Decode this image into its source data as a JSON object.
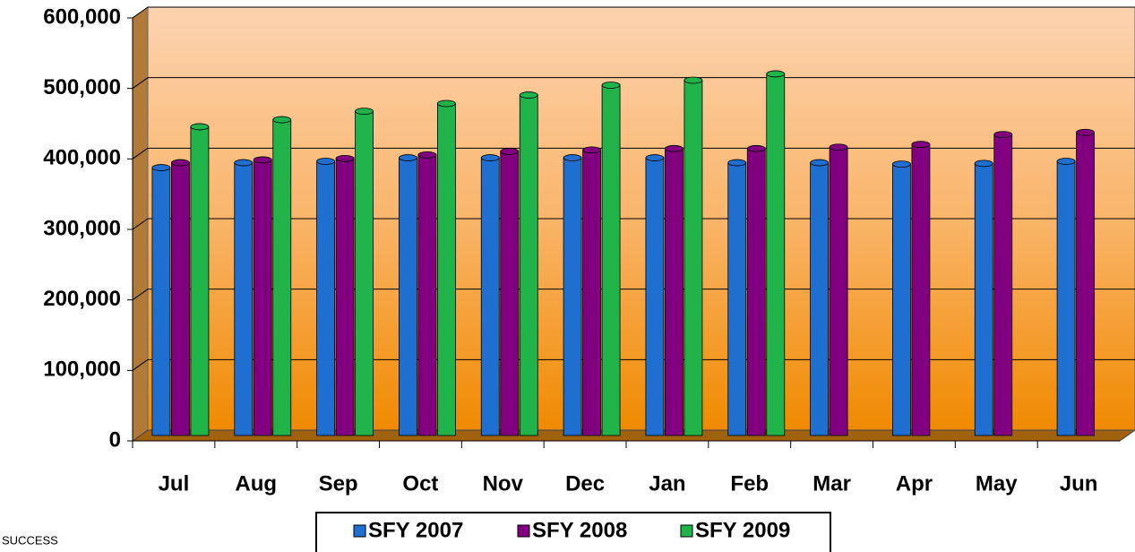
{
  "chart_data": {
    "type": "bar",
    "categories": [
      "Jul",
      "Aug",
      "Sep",
      "Oct",
      "Nov",
      "Dec",
      "Jan",
      "Feb",
      "Mar",
      "Apr",
      "May",
      "Jun"
    ],
    "series": [
      {
        "name": "SFY 2007",
        "color": "#1f6fd1",
        "values": [
          380000,
          387000,
          389000,
          394000,
          394000,
          394000,
          394000,
          387000,
          387000,
          385000,
          386000,
          389000
        ]
      },
      {
        "name": "SFY 2008",
        "color": "#800080",
        "values": [
          387000,
          391000,
          393000,
          398000,
          403000,
          405000,
          407000,
          407000,
          409000,
          413000,
          427000,
          430000
        ]
      },
      {
        "name": "SFY 2009",
        "color": "#1fb34a",
        "values": [
          438000,
          448000,
          460000,
          471000,
          483000,
          497000,
          504000,
          513000,
          null,
          null,
          null,
          null
        ]
      }
    ],
    "ylim": [
      0,
      600000
    ],
    "yticks": [
      {
        "value": 0,
        "label": "0"
      },
      {
        "value": 100000,
        "label": "100,000"
      },
      {
        "value": 200000,
        "label": "200,000"
      },
      {
        "value": 300000,
        "label": "300,000"
      },
      {
        "value": 400000,
        "label": "400,000"
      },
      {
        "value": 500000,
        "label": "500,000"
      },
      {
        "value": 600000,
        "label": "600,000"
      }
    ],
    "grid": true,
    "legend": "bottom",
    "annotation": "SUCCESS"
  }
}
